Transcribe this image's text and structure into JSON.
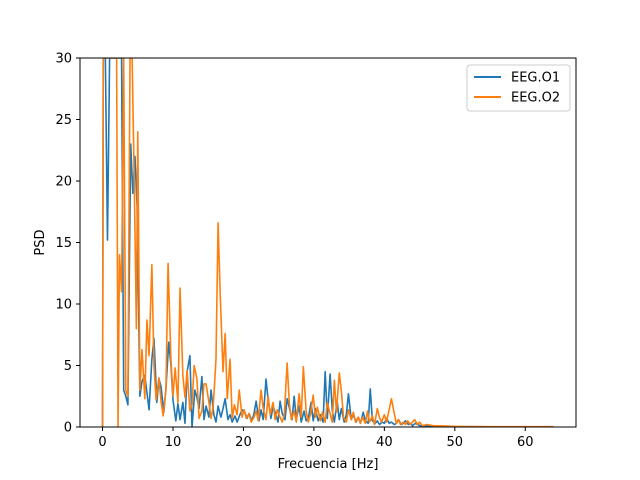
{
  "chart_data": {
    "type": "line",
    "xlabel": "Frecuencia [Hz]",
    "ylabel": "PSD",
    "xlim": [
      -3.2,
      67.2
    ],
    "ylim": [
      0,
      30
    ],
    "xticks": [
      0,
      10,
      20,
      30,
      40,
      50,
      60
    ],
    "yticks": [
      0,
      5,
      10,
      15,
      20,
      25,
      30
    ],
    "grid": false,
    "legend_position": "top-right",
    "series": [
      {
        "name": "EEG.O1",
        "color": "#1f77b4",
        "points": [
          [
            0,
            0
          ],
          [
            0.1,
            30
          ],
          [
            0.4,
            30
          ],
          [
            0.7,
            15.2
          ],
          [
            1.0,
            30
          ],
          [
            2.0,
            30
          ],
          [
            2.4,
            30
          ],
          [
            2.7,
            30
          ],
          [
            3.0,
            3
          ],
          [
            3.3,
            2.5
          ],
          [
            3.6,
            1.8
          ],
          [
            4.0,
            23
          ],
          [
            4.3,
            19
          ],
          [
            4.6,
            22
          ],
          [
            4.9,
            18
          ],
          [
            5.3,
            2.5
          ],
          [
            5.6,
            3.7
          ],
          [
            6.0,
            4.2
          ],
          [
            6.3,
            2.8
          ],
          [
            6.6,
            1.4
          ],
          [
            7.0,
            5.5
          ],
          [
            7.3,
            7.2
          ],
          [
            7.7,
            2.0
          ],
          [
            8.0,
            3.9
          ],
          [
            8.3,
            3.3
          ],
          [
            8.7,
            1.2
          ],
          [
            9.0,
            3.2
          ],
          [
            9.4,
            6.9
          ],
          [
            9.7,
            5.1
          ],
          [
            10.0,
            2.2
          ],
          [
            10.4,
            0.5
          ],
          [
            10.7,
            1.9
          ],
          [
            11.0,
            0.6
          ],
          [
            11.4,
            2.0
          ],
          [
            11.7,
            0.3
          ],
          [
            12.0,
            4.5
          ],
          [
            12.4,
            5.8
          ],
          [
            12.7,
            0.0
          ],
          [
            13.1,
            3.0
          ],
          [
            13.4,
            2.4
          ],
          [
            13.7,
            1.5
          ],
          [
            14.1,
            4.1
          ],
          [
            14.4,
            0.6
          ],
          [
            14.7,
            1.7
          ],
          [
            15.1,
            0.8
          ],
          [
            15.4,
            3.0
          ],
          [
            15.8,
            1.0
          ],
          [
            16.1,
            0.4
          ],
          [
            16.4,
            1.7
          ],
          [
            16.8,
            0.8
          ],
          [
            17.1,
            1.5
          ],
          [
            17.4,
            2.3
          ],
          [
            17.8,
            0.6
          ],
          [
            18.1,
            1.0
          ],
          [
            18.4,
            0.4
          ],
          [
            18.8,
            0.9
          ],
          [
            19.1,
            0.4
          ],
          [
            19.5,
            1.0
          ],
          [
            19.8,
            1.4
          ],
          [
            20.2,
            1.2
          ],
          [
            20.5,
            0.7
          ],
          [
            20.8,
            1.1
          ],
          [
            21.2,
            0.5
          ],
          [
            21.5,
            1.1
          ],
          [
            21.8,
            2.1
          ],
          [
            22.2,
            0.5
          ],
          [
            22.5,
            1.4
          ],
          [
            22.8,
            0.6
          ],
          [
            23.2,
            3.9
          ],
          [
            23.5,
            2.2
          ],
          [
            23.9,
            0.7
          ],
          [
            24.2,
            1.7
          ],
          [
            24.5,
            1.2
          ],
          [
            24.9,
            0.4
          ],
          [
            25.2,
            2.1
          ],
          [
            25.5,
            1.1
          ],
          [
            25.9,
            0.6
          ],
          [
            26.2,
            2.3
          ],
          [
            26.5,
            1.6
          ],
          [
            26.9,
            0.6
          ],
          [
            27.2,
            2.5
          ],
          [
            27.5,
            0.6
          ],
          [
            27.9,
            1.7
          ],
          [
            28.2,
            0.4
          ],
          [
            28.6,
            1.3
          ],
          [
            28.9,
            0.5
          ],
          [
            29.2,
            0.7
          ],
          [
            29.6,
            2.0
          ],
          [
            29.9,
            0.5
          ],
          [
            30.2,
            1.5
          ],
          [
            30.6,
            0.5
          ],
          [
            30.9,
            1.0
          ],
          [
            31.3,
            0.4
          ],
          [
            31.6,
            4.5
          ],
          [
            31.9,
            0.7
          ],
          [
            32.3,
            4.3
          ],
          [
            32.6,
            1.4
          ],
          [
            32.9,
            0.4
          ],
          [
            33.3,
            2.1
          ],
          [
            33.6,
            0.6
          ],
          [
            33.9,
            1.5
          ],
          [
            34.3,
            0.4
          ],
          [
            34.6,
            1.0
          ],
          [
            34.9,
            2.7
          ],
          [
            35.3,
            0.6
          ],
          [
            35.6,
            1.0
          ],
          [
            36.0,
            0.4
          ],
          [
            36.3,
            0.8
          ],
          [
            36.6,
            0.3
          ],
          [
            37.0,
            1.2
          ],
          [
            37.3,
            0.5
          ],
          [
            37.7,
            0.3
          ],
          [
            38.0,
            3.1
          ],
          [
            38.3,
            0.5
          ],
          [
            38.7,
            0.3
          ],
          [
            39.0,
            0.5
          ],
          [
            39.3,
            0.2
          ],
          [
            39.7,
            0.4
          ],
          [
            40.0,
            0.3
          ],
          [
            40.3,
            0.7
          ],
          [
            40.7,
            0.3
          ],
          [
            41.0,
            0.4
          ],
          [
            41.4,
            0.2
          ],
          [
            41.7,
            0.3
          ],
          [
            42.0,
            0.6
          ],
          [
            42.4,
            0.2
          ],
          [
            42.7,
            0.3
          ],
          [
            43.0,
            0.5
          ],
          [
            43.4,
            0.2
          ],
          [
            43.7,
            0.3
          ],
          [
            44.0,
            0.1
          ],
          [
            44.4,
            0.3
          ],
          [
            44.7,
            0.2
          ],
          [
            45.1,
            0.1
          ],
          [
            46.0,
            0.1
          ],
          [
            47.0,
            0.05
          ],
          [
            50.0,
            0.03
          ],
          [
            55.0,
            0.02
          ],
          [
            60.0,
            0.02
          ],
          [
            64.0,
            0.02
          ]
        ]
      },
      {
        "name": "EEG.O2",
        "color": "#ff7f0e",
        "points": [
          [
            0,
            0
          ],
          [
            0.1,
            30
          ],
          [
            0.4,
            30
          ],
          [
            2.0,
            30
          ],
          [
            2.2,
            0
          ],
          [
            2.4,
            14
          ],
          [
            2.7,
            11
          ],
          [
            3.0,
            30
          ],
          [
            3.3,
            3
          ],
          [
            3.6,
            2.5
          ],
          [
            3.9,
            30
          ],
          [
            4.2,
            30
          ],
          [
            4.5,
            20
          ],
          [
            4.8,
            8
          ],
          [
            5.0,
            24
          ],
          [
            5.3,
            3
          ],
          [
            5.6,
            6.3
          ],
          [
            6.0,
            2.3
          ],
          [
            6.3,
            8.7
          ],
          [
            6.6,
            5.8
          ],
          [
            7.0,
            13.2
          ],
          [
            7.3,
            5.0
          ],
          [
            7.6,
            2.2
          ],
          [
            8.0,
            4.0
          ],
          [
            8.3,
            2.1
          ],
          [
            8.6,
            0.9
          ],
          [
            9.0,
            3.0
          ],
          [
            9.3,
            13.3
          ],
          [
            9.7,
            5.6
          ],
          [
            10.0,
            2.5
          ],
          [
            10.3,
            4.8
          ],
          [
            10.7,
            2.0
          ],
          [
            11.0,
            11.3
          ],
          [
            11.4,
            4.2
          ],
          [
            11.7,
            2.4
          ],
          [
            12.0,
            4.6
          ],
          [
            12.4,
            1.3
          ],
          [
            12.7,
            1.8
          ],
          [
            13.0,
            5.0
          ],
          [
            13.4,
            3.9
          ],
          [
            13.7,
            0.7
          ],
          [
            14.1,
            1.3
          ],
          [
            14.4,
            3.5
          ],
          [
            14.7,
            3.5
          ],
          [
            15.1,
            2.0
          ],
          [
            15.4,
            0.7
          ],
          [
            15.7,
            1.6
          ],
          [
            16.1,
            5.5
          ],
          [
            16.4,
            16.6
          ],
          [
            16.7,
            10.8
          ],
          [
            17.1,
            4.5
          ],
          [
            17.4,
            7.6
          ],
          [
            17.7,
            2.3
          ],
          [
            18.1,
            5.5
          ],
          [
            18.4,
            0.7
          ],
          [
            18.7,
            1.8
          ],
          [
            19.1,
            1.0
          ],
          [
            19.4,
            3.0
          ],
          [
            19.8,
            0.8
          ],
          [
            20.1,
            1.4
          ],
          [
            20.4,
            0.7
          ],
          [
            20.8,
            1.1
          ],
          [
            21.1,
            0.4
          ],
          [
            21.5,
            0.8
          ],
          [
            21.8,
            1.3
          ],
          [
            22.1,
            0.5
          ],
          [
            22.5,
            3.0
          ],
          [
            22.8,
            1.5
          ],
          [
            23.2,
            0.6
          ],
          [
            23.5,
            2.5
          ],
          [
            23.8,
            1.0
          ],
          [
            24.2,
            2.0
          ],
          [
            24.5,
            0.6
          ],
          [
            24.8,
            1.4
          ],
          [
            25.2,
            0.8
          ],
          [
            25.5,
            0.4
          ],
          [
            25.8,
            1.0
          ],
          [
            26.2,
            5.2
          ],
          [
            26.5,
            2.0
          ],
          [
            26.8,
            0.6
          ],
          [
            27.2,
            1.3
          ],
          [
            27.5,
            0.4
          ],
          [
            27.9,
            2.7
          ],
          [
            28.2,
            0.8
          ],
          [
            28.5,
            4.9
          ],
          [
            28.9,
            1.3
          ],
          [
            29.2,
            0.4
          ],
          [
            29.5,
            1.0
          ],
          [
            29.9,
            2.6
          ],
          [
            30.2,
            0.8
          ],
          [
            30.5,
            1.6
          ],
          [
            30.9,
            0.5
          ],
          [
            31.2,
            1.2
          ],
          [
            31.6,
            0.4
          ],
          [
            31.9,
            2.0
          ],
          [
            32.2,
            1.3
          ],
          [
            32.6,
            0.4
          ],
          [
            32.9,
            3.8
          ],
          [
            33.2,
            1.2
          ],
          [
            33.6,
            4.4
          ],
          [
            33.9,
            2.9
          ],
          [
            34.2,
            0.8
          ],
          [
            34.6,
            0.4
          ],
          [
            34.9,
            1.4
          ],
          [
            35.3,
            0.6
          ],
          [
            35.6,
            1.2
          ],
          [
            35.9,
            0.4
          ],
          [
            36.3,
            0.8
          ],
          [
            36.6,
            0.3
          ],
          [
            36.9,
            0.8
          ],
          [
            37.3,
            0.3
          ],
          [
            37.6,
            1.3
          ],
          [
            37.9,
            0.4
          ],
          [
            38.3,
            0.9
          ],
          [
            38.6,
            0.2
          ],
          [
            39.0,
            1.5
          ],
          [
            39.3,
            0.8
          ],
          [
            39.6,
            0.4
          ],
          [
            40.0,
            1.0
          ],
          [
            40.3,
            0.4
          ],
          [
            40.6,
            1.2
          ],
          [
            41.0,
            2.3
          ],
          [
            41.3,
            1.4
          ],
          [
            41.7,
            0.3
          ],
          [
            42.0,
            0.6
          ],
          [
            42.3,
            0.2
          ],
          [
            42.7,
            0.4
          ],
          [
            43.0,
            0.2
          ],
          [
            43.3,
            0.5
          ],
          [
            43.7,
            0.2
          ],
          [
            44.0,
            0.4
          ],
          [
            44.3,
            0.6
          ],
          [
            44.7,
            0.2
          ],
          [
            45.0,
            0.4
          ],
          [
            45.4,
            0.1
          ],
          [
            46.0,
            0.2
          ],
          [
            47.0,
            0.1
          ],
          [
            48.0,
            0.1
          ],
          [
            50.0,
            0.05
          ],
          [
            55.0,
            0.03
          ],
          [
            60.0,
            0.03
          ],
          [
            64.0,
            0.03
          ]
        ]
      }
    ]
  }
}
